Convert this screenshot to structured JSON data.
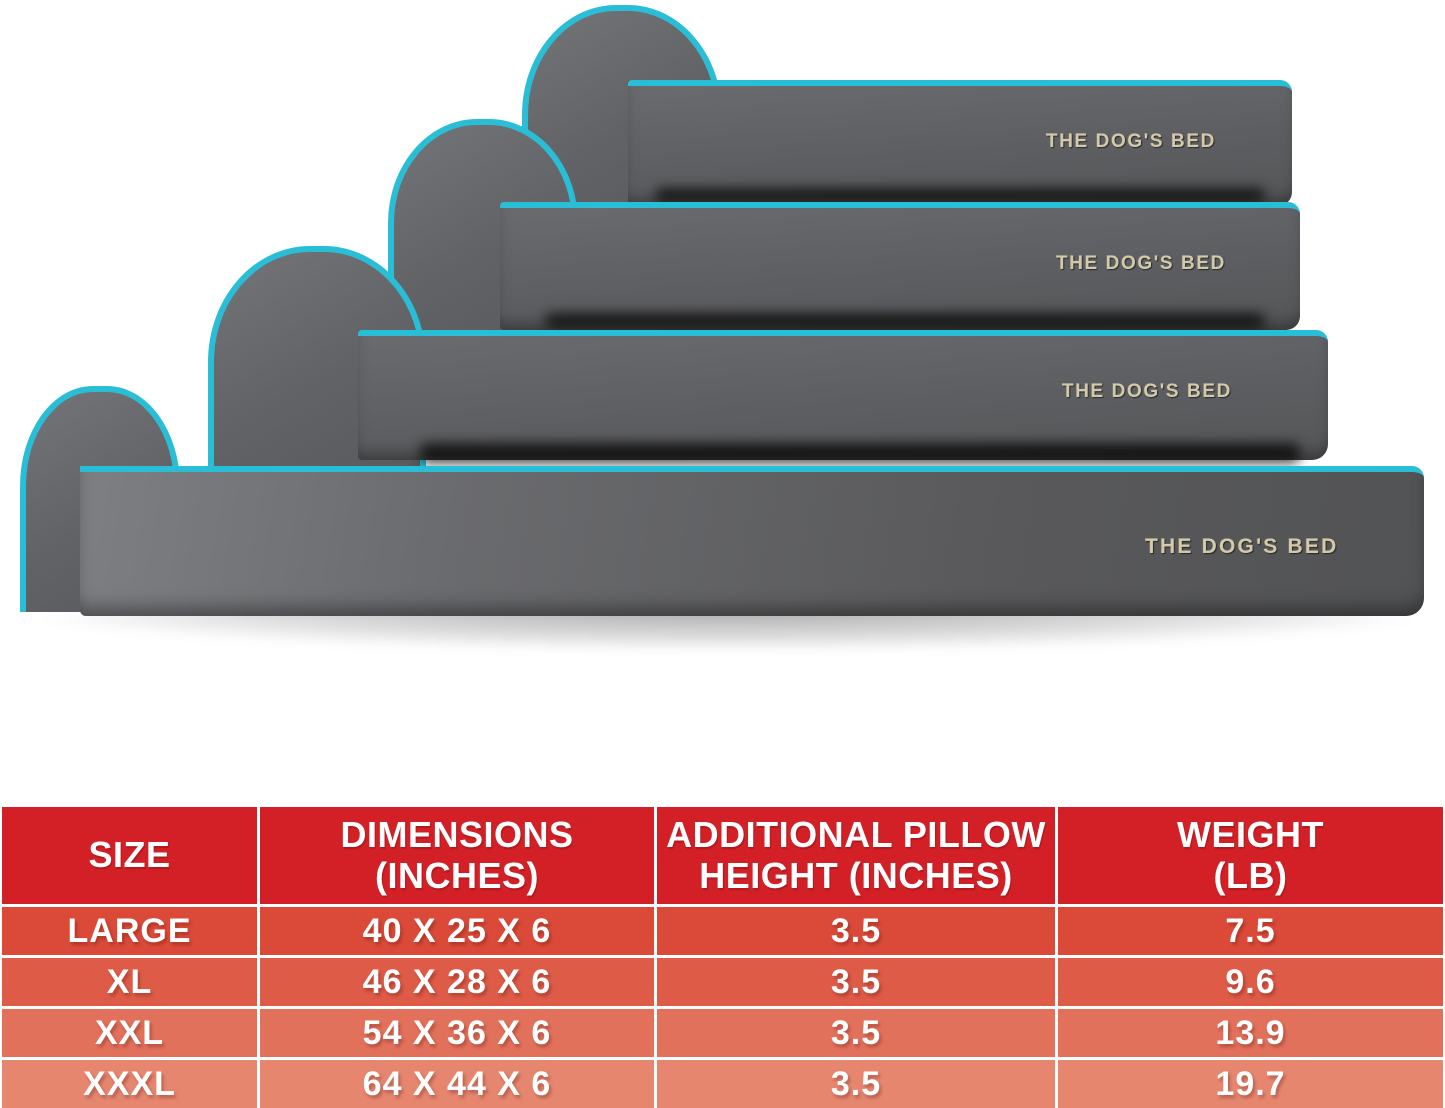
{
  "product": {
    "beds": [
      {
        "position": "top-smallest",
        "label": "THE DOG'S BED"
      },
      {
        "position": "second",
        "label": "THE DOG'S BED"
      },
      {
        "position": "third",
        "label": "THE DOG'S BED"
      },
      {
        "position": "bottom-largest",
        "label": "THE DOG'S BED"
      }
    ],
    "colors": {
      "fabric_gray": "#636467",
      "piping_teal": "#2abdd6",
      "label_beige": "#d3c8a7"
    }
  },
  "chart_data": {
    "type": "table",
    "columns": [
      "SIZE",
      "DIMENSIONS\n(INCHES)",
      "ADDITIONAL PILLOW\nHEIGHT (INCHES)",
      "WEIGHT\n(LB)"
    ],
    "rows": [
      [
        "LARGE",
        "40 X 25 X 6",
        "3.5",
        "7.5"
      ],
      [
        "XL",
        "46 X 28 X 6",
        "3.5",
        "9.6"
      ],
      [
        "XXL",
        "54 X 36 X 6",
        "3.5",
        "13.9"
      ],
      [
        "XXXL",
        "64 X 44 X 6",
        "3.5",
        "19.7"
      ]
    ],
    "header_bg": "#d32026",
    "row_bgs": [
      "#db4a39",
      "#de5b48",
      "#e2715b",
      "#e6866f"
    ],
    "text_color": "#ffffff",
    "layout": {
      "grid": "off",
      "header_rows": 1
    }
  }
}
